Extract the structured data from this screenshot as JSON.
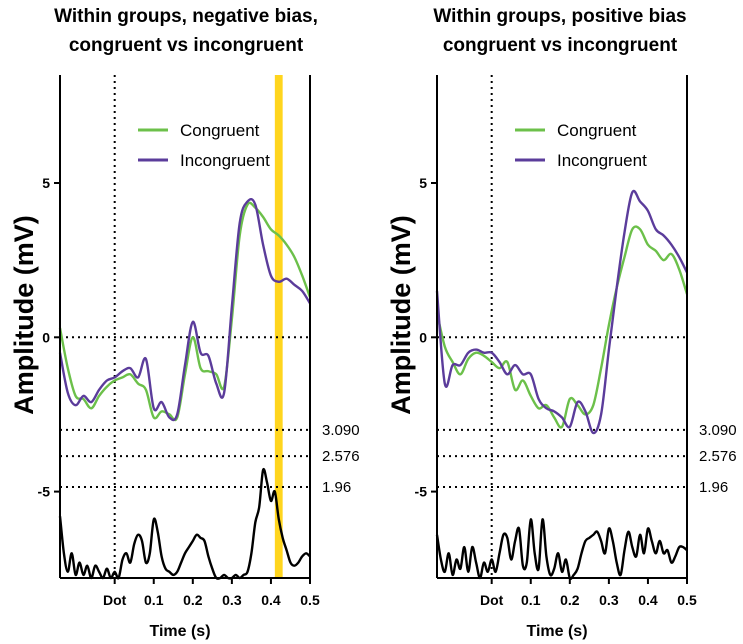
{
  "colors": {
    "congruent": "#6cc04a",
    "incongruent": "#5b3c9b",
    "significance": "#000000",
    "highlight": "#ffd51e",
    "axis": "#000000"
  },
  "chart_data": [
    {
      "type": "line",
      "title_line1": "Within groups, negative bias,",
      "title_line2": "congruent vs incongruent",
      "xlabel": "Time (s)",
      "ylabel": "Amplitude (mV)",
      "xlim": [
        -0.14,
        0.5
      ],
      "ylim": [
        -7.8,
        8.5
      ],
      "x_ticks": [
        {
          "v": 0,
          "label": "Dot"
        },
        {
          "v": 0.1,
          "label": "0.1"
        },
        {
          "v": 0.2,
          "label": "0.2"
        },
        {
          "v": 0.3,
          "label": "0.3"
        },
        {
          "v": 0.4,
          "label": "0.4"
        },
        {
          "v": 0.5,
          "label": "0.5"
        }
      ],
      "y_ticks": [
        {
          "v": 5,
          "label": "5"
        },
        {
          "v": 0,
          "label": "0"
        },
        {
          "v": -5,
          "label": "-5"
        }
      ],
      "thresholds": [
        {
          "v": -3.0,
          "label": "3.090"
        },
        {
          "v": -3.85,
          "label": "2.576"
        },
        {
          "v": -4.85,
          "label": "1.96"
        }
      ],
      "highlight": [
        0.41,
        0.43
      ],
      "legend": [
        "Congruent",
        "Incongruent"
      ],
      "series": [
        {
          "name": "Congruent",
          "color": "#6cc04a",
          "x": [
            -0.14,
            -0.12,
            -0.1,
            -0.08,
            -0.06,
            -0.04,
            -0.02,
            0.0,
            0.02,
            0.04,
            0.06,
            0.08,
            0.1,
            0.12,
            0.14,
            0.16,
            0.18,
            0.2,
            0.22,
            0.24,
            0.26,
            0.28,
            0.3,
            0.32,
            0.34,
            0.36,
            0.38,
            0.4,
            0.42,
            0.44,
            0.46,
            0.48,
            0.5
          ],
          "y": [
            0.3,
            -1.0,
            -1.9,
            -2.0,
            -2.3,
            -1.9,
            -1.6,
            -1.4,
            -1.3,
            -1.2,
            -1.5,
            -1.7,
            -2.6,
            -2.4,
            -2.5,
            -2.6,
            -1.2,
            0.0,
            -1.0,
            -1.1,
            -1.2,
            -1.6,
            0.6,
            3.3,
            4.3,
            4.2,
            3.9,
            3.5,
            3.3,
            3.0,
            2.6,
            2.0,
            1.3
          ]
        },
        {
          "name": "Incongruent",
          "color": "#5b3c9b",
          "x": [
            -0.14,
            -0.12,
            -0.1,
            -0.08,
            -0.06,
            -0.04,
            -0.02,
            0.0,
            0.02,
            0.04,
            0.06,
            0.08,
            0.1,
            0.12,
            0.14,
            0.16,
            0.18,
            0.2,
            0.22,
            0.24,
            0.26,
            0.28,
            0.3,
            0.32,
            0.34,
            0.36,
            0.38,
            0.4,
            0.42,
            0.44,
            0.46,
            0.48,
            0.5
          ],
          "y": [
            -0.5,
            -1.8,
            -2.2,
            -1.9,
            -2.1,
            -1.7,
            -1.4,
            -1.3,
            -1.1,
            -1.0,
            -1.3,
            -0.7,
            -2.3,
            -2.1,
            -2.6,
            -2.5,
            -0.9,
            0.5,
            -0.5,
            -0.6,
            -1.5,
            -1.8,
            1.0,
            3.7,
            4.4,
            4.3,
            3.0,
            2.0,
            1.8,
            1.9,
            1.7,
            1.5,
            1.1
          ]
        },
        {
          "name": "Significance",
          "color": "#000000",
          "x": [
            -0.14,
            -0.13,
            -0.12,
            -0.11,
            -0.1,
            -0.09,
            -0.08,
            -0.07,
            -0.06,
            -0.05,
            -0.04,
            -0.03,
            -0.02,
            -0.01,
            0.0,
            0.01,
            0.02,
            0.03,
            0.04,
            0.05,
            0.06,
            0.07,
            0.08,
            0.09,
            0.1,
            0.11,
            0.12,
            0.13,
            0.14,
            0.15,
            0.16,
            0.17,
            0.18,
            0.19,
            0.2,
            0.21,
            0.22,
            0.23,
            0.24,
            0.25,
            0.26,
            0.27,
            0.28,
            0.29,
            0.3,
            0.31,
            0.32,
            0.33,
            0.34,
            0.35,
            0.36,
            0.37,
            0.38,
            0.39,
            0.4,
            0.41,
            0.42,
            0.43,
            0.44,
            0.45,
            0.46,
            0.47,
            0.48,
            0.49,
            0.5
          ],
          "y": [
            -5.8,
            -7.0,
            -7.6,
            -7.0,
            -7.7,
            -7.3,
            -7.7,
            -7.4,
            -7.8,
            -7.4,
            -7.6,
            -7.8,
            -7.5,
            -7.8,
            -7.6,
            -7.8,
            -7.2,
            -7.0,
            -7.3,
            -6.7,
            -6.4,
            -6.6,
            -7.3,
            -7.0,
            -5.9,
            -6.3,
            -7.1,
            -7.5,
            -7.6,
            -7.7,
            -7.6,
            -7.3,
            -7.0,
            -6.8,
            -6.6,
            -6.4,
            -6.5,
            -6.6,
            -7.1,
            -7.5,
            -7.8,
            -7.8,
            -7.7,
            -7.8,
            -7.8,
            -7.7,
            -7.8,
            -7.7,
            -7.6,
            -7.0,
            -6.0,
            -5.5,
            -4.3,
            -4.7,
            -5.3,
            -5.0,
            -5.9,
            -6.5,
            -6.9,
            -7.3,
            -7.4,
            -7.3,
            -7.1,
            -7.0,
            -7.1
          ]
        }
      ]
    },
    {
      "type": "line",
      "title_line1": "Within groups, positive bias",
      "title_line2": "congruent vs incongruent",
      "xlabel": "Time (s)",
      "ylabel": "Amplitude (mV)",
      "xlim": [
        -0.14,
        0.5
      ],
      "ylim": [
        -7.8,
        8.5
      ],
      "x_ticks": [
        {
          "v": 0,
          "label": "Dot"
        },
        {
          "v": 0.1,
          "label": "0.1"
        },
        {
          "v": 0.2,
          "label": "0.2"
        },
        {
          "v": 0.3,
          "label": "0.3"
        },
        {
          "v": 0.4,
          "label": "0.4"
        },
        {
          "v": 0.5,
          "label": "0.5"
        }
      ],
      "y_ticks": [
        {
          "v": 5,
          "label": "5"
        },
        {
          "v": 0,
          "label": "0"
        },
        {
          "v": -5,
          "label": "-5"
        }
      ],
      "thresholds": [
        {
          "v": -3.0,
          "label": "3.090"
        },
        {
          "v": -3.85,
          "label": "2.576"
        },
        {
          "v": -4.85,
          "label": "1.96"
        }
      ],
      "legend": [
        "Congruent",
        "Incongruent"
      ],
      "series": [
        {
          "name": "Congruent",
          "color": "#6cc04a",
          "x": [
            -0.14,
            -0.12,
            -0.1,
            -0.08,
            -0.06,
            -0.04,
            -0.02,
            0.0,
            0.02,
            0.04,
            0.06,
            0.08,
            0.1,
            0.12,
            0.14,
            0.16,
            0.18,
            0.2,
            0.22,
            0.24,
            0.26,
            0.28,
            0.3,
            0.32,
            0.34,
            0.36,
            0.38,
            0.4,
            0.42,
            0.44,
            0.46,
            0.48,
            0.5
          ],
          "y": [
            0.8,
            -0.3,
            -0.8,
            -1.2,
            -0.7,
            -0.5,
            -0.6,
            -0.8,
            -1.0,
            -0.8,
            -1.7,
            -1.4,
            -1.9,
            -2.3,
            -2.2,
            -2.6,
            -2.9,
            -2.0,
            -2.2,
            -2.5,
            -2.2,
            -1.0,
            0.4,
            1.6,
            2.6,
            3.5,
            3.5,
            3.0,
            2.8,
            2.5,
            2.7,
            2.2,
            1.4
          ]
        },
        {
          "name": "Incongruent",
          "color": "#5b3c9b",
          "x": [
            -0.14,
            -0.12,
            -0.1,
            -0.08,
            -0.06,
            -0.04,
            -0.02,
            0.0,
            0.02,
            0.04,
            0.06,
            0.08,
            0.1,
            0.12,
            0.14,
            0.16,
            0.18,
            0.2,
            0.22,
            0.24,
            0.26,
            0.28,
            0.3,
            0.32,
            0.34,
            0.36,
            0.38,
            0.4,
            0.42,
            0.44,
            0.46,
            0.48,
            0.5
          ],
          "y": [
            1.5,
            -1.5,
            -0.9,
            -0.9,
            -0.5,
            -0.4,
            -0.5,
            -0.5,
            -0.8,
            -1.2,
            -0.9,
            -1.2,
            -1.2,
            -2.0,
            -2.3,
            -2.4,
            -2.6,
            -2.9,
            -2.1,
            -2.4,
            -3.1,
            -2.5,
            -0.4,
            1.6,
            3.4,
            4.7,
            4.4,
            4.1,
            3.5,
            3.3,
            3.0,
            2.6,
            2.1
          ]
        },
        {
          "name": "Significance",
          "color": "#000000",
          "x": [
            -0.14,
            -0.13,
            -0.12,
            -0.11,
            -0.1,
            -0.09,
            -0.08,
            -0.07,
            -0.06,
            -0.05,
            -0.04,
            -0.03,
            -0.02,
            -0.01,
            0.0,
            0.01,
            0.02,
            0.03,
            0.04,
            0.05,
            0.06,
            0.07,
            0.08,
            0.09,
            0.1,
            0.11,
            0.12,
            0.13,
            0.14,
            0.15,
            0.16,
            0.17,
            0.18,
            0.19,
            0.2,
            0.21,
            0.22,
            0.23,
            0.24,
            0.25,
            0.26,
            0.27,
            0.28,
            0.29,
            0.3,
            0.31,
            0.32,
            0.33,
            0.34,
            0.35,
            0.36,
            0.37,
            0.38,
            0.39,
            0.4,
            0.41,
            0.42,
            0.43,
            0.44,
            0.45,
            0.46,
            0.47,
            0.48,
            0.49,
            0.5
          ],
          "y": [
            -6.4,
            -7.2,
            -7.6,
            -7.0,
            -7.7,
            -7.2,
            -7.5,
            -6.8,
            -7.6,
            -6.8,
            -7.3,
            -7.8,
            -7.3,
            -7.6,
            -7.2,
            -7.6,
            -7.0,
            -6.4,
            -6.5,
            -7.2,
            -6.6,
            -6.2,
            -7.4,
            -7.3,
            -5.9,
            -7.0,
            -7.5,
            -5.9,
            -7.1,
            -7.7,
            -7.5,
            -7.0,
            -7.6,
            -7.2,
            -7.8,
            -7.7,
            -7.5,
            -7.0,
            -6.6,
            -6.5,
            -6.4,
            -6.3,
            -6.6,
            -7.0,
            -6.2,
            -6.6,
            -7.3,
            -7.7,
            -6.9,
            -6.3,
            -6.8,
            -7.1,
            -6.4,
            -7.0,
            -6.2,
            -6.6,
            -7.0,
            -6.6,
            -7.0,
            -6.9,
            -7.3,
            -7.1,
            -6.8,
            -6.8,
            -6.9
          ]
        }
      ]
    }
  ]
}
